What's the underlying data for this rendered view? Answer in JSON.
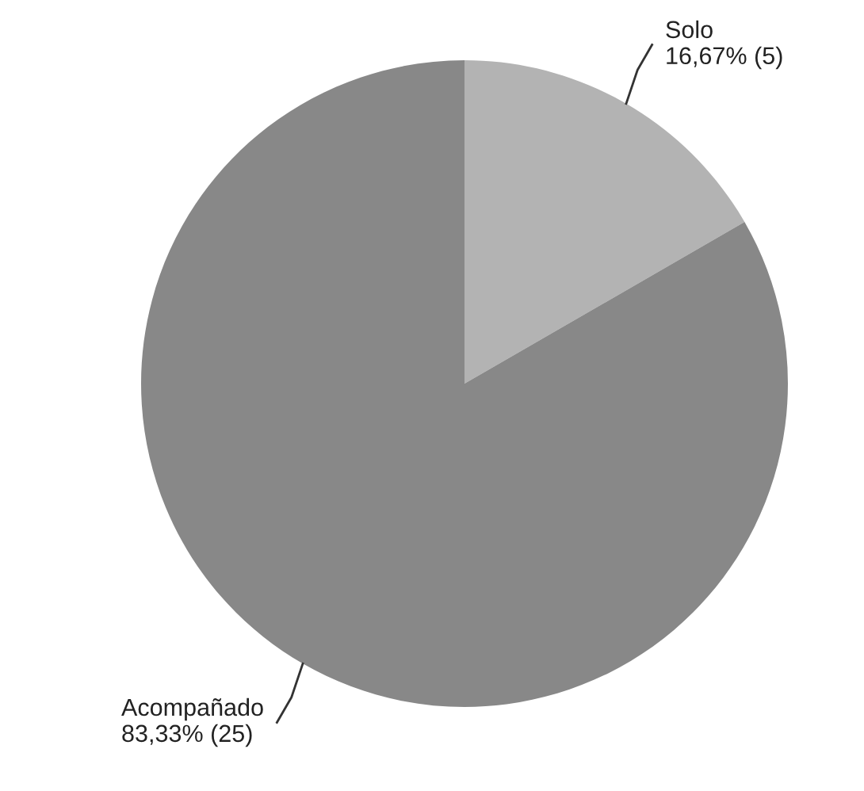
{
  "chart_data": {
    "type": "pie",
    "categories": [
      "Solo",
      "Acompañado"
    ],
    "values": [
      5,
      25
    ],
    "colors": [
      "#b3b3b3",
      "#888888"
    ],
    "value_labels": [
      "16,67% (5)",
      "83,33% (25)"
    ]
  }
}
